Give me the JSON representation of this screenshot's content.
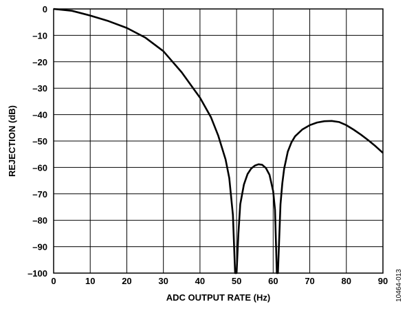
{
  "chart_data": {
    "type": "line",
    "xlabel": "ADC OUTPUT RATE (Hz)",
    "ylabel": "REJECTION (dB)",
    "xlim": [
      0,
      90
    ],
    "ylim": [
      -100,
      0
    ],
    "x_ticks": [
      "0",
      "10",
      "20",
      "30",
      "40",
      "50",
      "60",
      "70",
      "80",
      "90"
    ],
    "y_ticks": [
      "0",
      "–10",
      "–20",
      "–30",
      "–40",
      "–50",
      "–60",
      "–70",
      "–80",
      "–90",
      "–100"
    ],
    "grid": true,
    "line_color": "#000000",
    "series": [
      {
        "x": [
          0,
          5,
          10,
          15,
          20,
          25,
          30,
          35,
          40,
          43,
          45,
          47,
          48,
          49,
          49.6,
          50,
          50.5,
          51,
          52,
          53,
          54,
          55,
          56,
          57,
          58,
          59,
          60,
          60.5,
          61,
          61.3,
          62,
          62.5,
          63,
          64,
          65,
          66,
          68,
          70,
          72,
          74,
          76,
          78,
          80,
          82,
          84,
          86,
          88,
          90
        ],
        "y": [
          0,
          -0.7,
          -2.5,
          -4.6,
          -7.2,
          -10.8,
          -16,
          -24,
          -33.6,
          -41,
          -48,
          -57,
          -64,
          -78,
          -100,
          -100,
          -85,
          -74,
          -66.5,
          -62.5,
          -60.4,
          -59.3,
          -58.8,
          -59,
          -60.2,
          -62.8,
          -69,
          -76,
          -100,
          -100,
          -74,
          -66,
          -60.5,
          -54,
          -50.5,
          -48.2,
          -45.6,
          -44,
          -43,
          -42.5,
          -42.4,
          -42.8,
          -44,
          -45.7,
          -47.6,
          -49.7,
          -52,
          -54.5
        ]
      }
    ]
  },
  "figure_id": "10464-013"
}
